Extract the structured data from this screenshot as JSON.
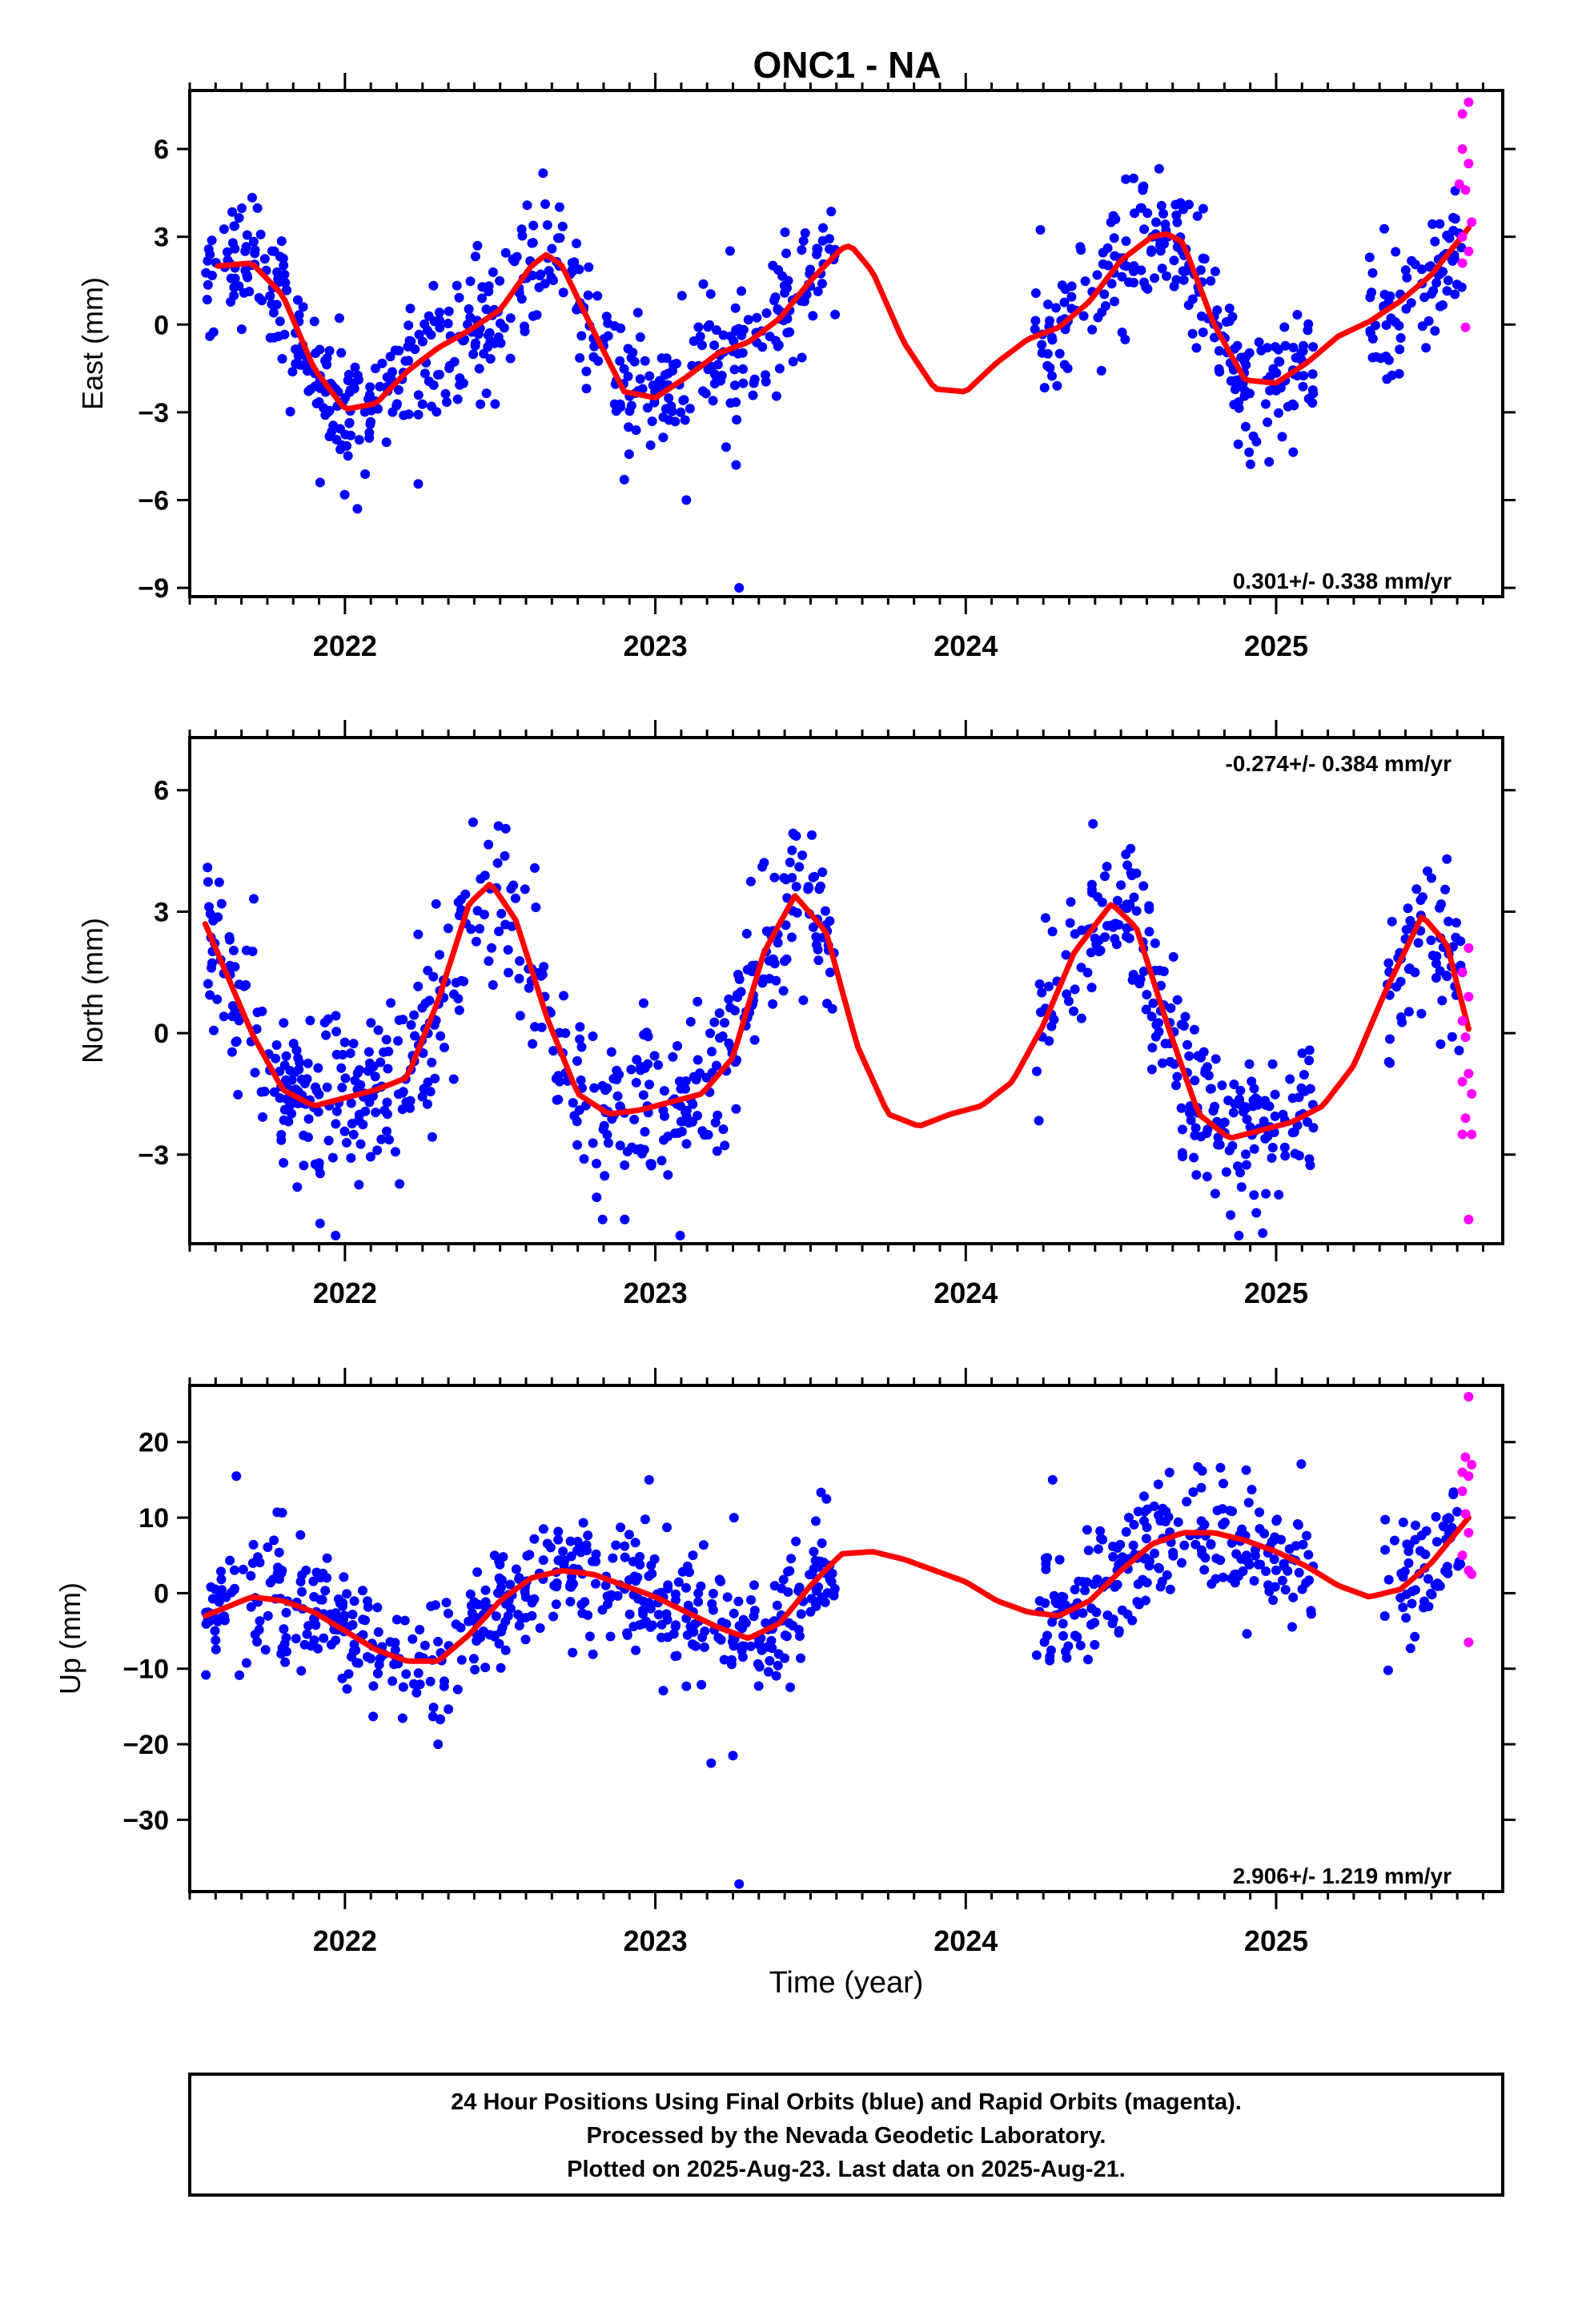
{
  "chart_data": {
    "type": "scatter",
    "title": "ONC1 - NA",
    "xlabel": "Time (year)",
    "x_ticks": [
      2022,
      2023,
      2024,
      2025
    ],
    "xlim": [
      2021.5,
      2025.73
    ],
    "colors": {
      "final": "#0000ff",
      "rapid": "#ff00ff",
      "fit": "#ff0000"
    },
    "panels": [
      {
        "name": "east",
        "ylabel": "East (mm)",
        "ylim": [
          -9.3,
          8.0
        ],
        "y_ticks": [
          -9,
          -6,
          -3,
          0,
          3,
          6
        ],
        "y_tick_labels": [
          "−9",
          "−6",
          "−3",
          "0",
          "3",
          "6"
        ],
        "rate_label": "0.301+/- 0.338 mm/yr",
        "rate_position": "bottom-right",
        "fit_x": [
          2021.59,
          2021.7,
          2021.8,
          2021.9,
          2022.0,
          2022.1,
          2022.2,
          2022.3,
          2022.4,
          2022.5,
          2022.6,
          2022.65,
          2022.7,
          2022.8,
          2022.9,
          2023.0,
          2023.1,
          2023.2,
          2023.3,
          2023.4,
          2023.5,
          2023.6,
          2023.63,
          2023.7,
          2023.8,
          2023.9,
          2024.0,
          2024.1,
          2024.2,
          2024.3,
          2024.4,
          2024.5,
          2024.6,
          2024.65,
          2024.7,
          2024.8,
          2024.9,
          2025.0,
          2025.1,
          2025.2,
          2025.3,
          2025.4,
          2025.5,
          2025.62
        ],
        "fit_y": [
          2.0,
          2.1,
          1.0,
          -1.5,
          -2.9,
          -2.7,
          -1.6,
          -0.8,
          -0.2,
          0.5,
          2.0,
          2.4,
          2.0,
          -0.2,
          -2.3,
          -2.5,
          -1.8,
          -1.0,
          -0.6,
          0.2,
          1.5,
          2.6,
          2.7,
          1.8,
          -0.6,
          -2.2,
          -2.3,
          -1.3,
          -0.5,
          -0.1,
          0.8,
          2.2,
          3.0,
          3.1,
          2.8,
          0.0,
          -1.9,
          -2.0,
          -1.3,
          -0.4,
          0.1,
          0.8,
          1.7,
          3.3
        ],
        "final_segments": [
          [
            2021.55,
            2023.58
          ],
          [
            2024.22,
            2025.12
          ],
          [
            2025.3,
            2025.6
          ]
        ],
        "noise": 1.1,
        "outliers": [
          [
            2023.27,
            -9.0
          ],
          [
            2022.04,
            -6.3
          ],
          [
            2023.1,
            -6.0
          ],
          [
            2022.9,
            -5.3
          ],
          [
            2021.92,
            -5.4
          ],
          [
            2023.26,
            -4.8
          ]
        ],
        "rapid_points": [
          [
            2025.6,
            7.2
          ],
          [
            2025.62,
            7.6
          ],
          [
            2025.6,
            6.0
          ],
          [
            2025.62,
            5.5
          ],
          [
            2025.59,
            4.8
          ],
          [
            2025.61,
            4.6
          ],
          [
            2025.63,
            3.5
          ],
          [
            2025.6,
            3.0
          ],
          [
            2025.62,
            2.5
          ],
          [
            2025.6,
            2.1
          ],
          [
            2025.61,
            -0.1
          ]
        ]
      },
      {
        "name": "north",
        "ylabel": "North (mm)",
        "ylim": [
          -5.2,
          7.3
        ],
        "y_ticks": [
          -3,
          0,
          3,
          6
        ],
        "y_tick_labels": [
          "−3",
          "0",
          "3",
          "6"
        ],
        "rate_label": "-0.274+/- 0.384 mm/yr",
        "rate_position": "top-right",
        "fit_x": [
          2021.55,
          2021.7,
          2021.8,
          2021.9,
          2022.0,
          2022.1,
          2022.2,
          2022.3,
          2022.4,
          2022.47,
          2022.55,
          2022.65,
          2022.75,
          2022.85,
          2022.95,
          2023.05,
          2023.15,
          2023.25,
          2023.35,
          2023.45,
          2023.55,
          2023.65,
          2023.75,
          2023.85,
          2023.95,
          2024.05,
          2024.15,
          2024.25,
          2024.35,
          2024.47,
          2024.55,
          2024.65,
          2024.75,
          2024.85,
          2024.95,
          2025.05,
          2025.15,
          2025.25,
          2025.35,
          2025.47,
          2025.55,
          2025.62
        ],
        "fit_y": [
          2.7,
          0.0,
          -1.4,
          -1.8,
          -1.6,
          -1.4,
          -1.1,
          0.8,
          3.2,
          3.7,
          2.8,
          0.4,
          -1.5,
          -2.0,
          -1.9,
          -1.7,
          -1.5,
          -0.6,
          2.0,
          3.4,
          2.5,
          -0.3,
          -2.0,
          -2.3,
          -2.0,
          -1.8,
          -1.2,
          0.2,
          2.0,
          3.2,
          2.6,
          0.2,
          -2.0,
          -2.6,
          -2.4,
          -2.2,
          -1.8,
          -0.8,
          1.0,
          2.9,
          2.2,
          0.1
        ],
        "final_segments": [
          [
            2021.55,
            2023.58
          ],
          [
            2024.22,
            2025.12
          ],
          [
            2025.35,
            2025.6
          ]
        ],
        "noise": 1.0,
        "outliers": [
          [
            2023.08,
            -5.0
          ],
          [
            2021.97,
            -5.0
          ],
          [
            2024.88,
            -5.0
          ],
          [
            2021.92,
            -4.7
          ],
          [
            2022.83,
            -4.6
          ],
          [
            2025.55,
            4.3
          ]
        ],
        "rapid_points": [
          [
            2025.62,
            2.1
          ],
          [
            2025.6,
            1.5
          ],
          [
            2025.62,
            0.9
          ],
          [
            2025.6,
            0.3
          ],
          [
            2025.61,
            -0.1
          ],
          [
            2025.62,
            -1.0
          ],
          [
            2025.6,
            -1.2
          ],
          [
            2025.63,
            -1.5
          ],
          [
            2025.61,
            -2.1
          ],
          [
            2025.6,
            -2.5
          ],
          [
            2025.63,
            -2.5
          ],
          [
            2025.62,
            -4.6
          ]
        ]
      },
      {
        "name": "up",
        "ylabel": "Up (mm)",
        "ylim": [
          -39.5,
          27.5
        ],
        "y_ticks": [
          -30,
          -20,
          -10,
          0,
          10,
          20
        ],
        "y_tick_labels": [
          "−30",
          "−20",
          "−10",
          "0",
          "10",
          "20"
        ],
        "rate_label": "2.906+/- 1.219 mm/yr",
        "rate_position": "bottom-right",
        "fit_x": [
          2021.55,
          2021.7,
          2021.8,
          2021.9,
          2022.0,
          2022.1,
          2022.2,
          2022.3,
          2022.4,
          2022.5,
          2022.6,
          2022.7,
          2022.8,
          2022.9,
          2023.0,
          2023.1,
          2023.2,
          2023.3,
          2023.4,
          2023.5,
          2023.6,
          2023.7,
          2023.8,
          2023.9,
          2024.0,
          2024.1,
          2024.2,
          2024.3,
          2024.4,
          2024.5,
          2024.6,
          2024.7,
          2024.8,
          2024.9,
          2025.0,
          2025.1,
          2025.2,
          2025.3,
          2025.4,
          2025.5,
          2025.62
        ],
        "fit_y": [
          -3.0,
          -0.5,
          -1.0,
          -2.5,
          -5.0,
          -7.5,
          -9.0,
          -9.0,
          -5.5,
          -1.0,
          2.0,
          3.0,
          2.5,
          1.0,
          -0.5,
          -2.5,
          -4.5,
          -6.0,
          -4.0,
          1.0,
          5.2,
          5.5,
          4.5,
          3.0,
          1.5,
          -1.0,
          -2.5,
          -3.0,
          -1.0,
          3.0,
          6.5,
          8.0,
          8.0,
          7.0,
          5.5,
          3.5,
          1.0,
          -0.5,
          0.5,
          4.0,
          10.0
        ],
        "final_segments": [
          [
            2021.55,
            2023.58
          ],
          [
            2024.22,
            2025.12
          ],
          [
            2025.35,
            2025.6
          ]
        ],
        "noise": 4.0,
        "outliers": [
          [
            2023.27,
            -38.5
          ],
          [
            2023.18,
            -22.5
          ],
          [
            2023.25,
            -21.5
          ],
          [
            2022.3,
            -20.0
          ],
          [
            2024.28,
            15.0
          ],
          [
            2022.98,
            15.0
          ],
          [
            2021.65,
            15.5
          ]
        ],
        "rapid_points": [
          [
            2025.62,
            26.0
          ],
          [
            2025.61,
            18.0
          ],
          [
            2025.63,
            17.0
          ],
          [
            2025.6,
            16.0
          ],
          [
            2025.62,
            15.5
          ],
          [
            2025.6,
            13.5
          ],
          [
            2025.61,
            10.5
          ],
          [
            2025.62,
            8.0
          ],
          [
            2025.6,
            5.0
          ],
          [
            2025.62,
            3.0
          ],
          [
            2025.63,
            2.5
          ],
          [
            2025.62,
            -6.5
          ]
        ]
      }
    ]
  },
  "footer": {
    "line1": "24 Hour Positions Using Final Orbits (blue) and Rapid Orbits (magenta).",
    "line2": "Processed by the Nevada Geodetic Laboratory.",
    "line3": "Plotted on 2025-Aug-23. Last data on 2025-Aug-21."
  }
}
